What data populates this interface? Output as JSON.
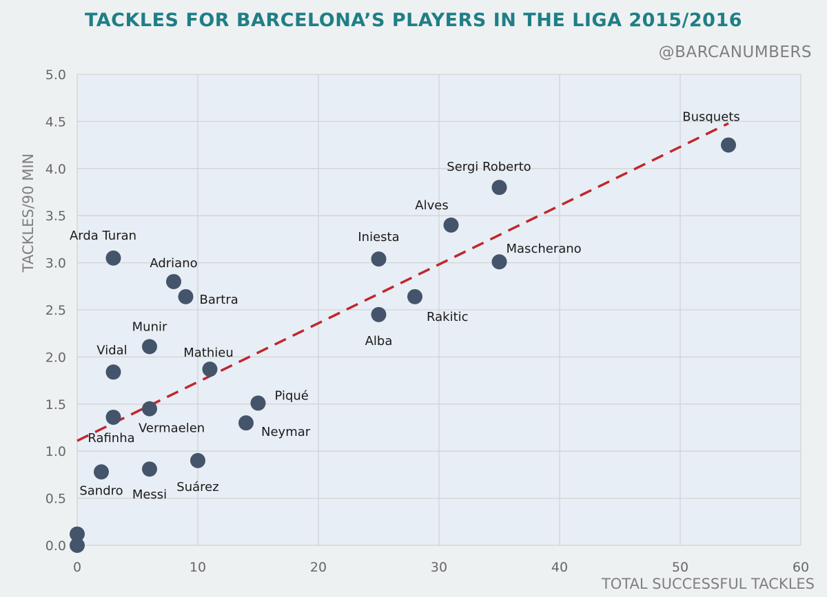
{
  "title": "TACKLES FOR BARCELONA’S PLAYERS IN THE LIGA 2015/2016",
  "handle": "@BARCANUMBERS",
  "colors": {
    "title": "#1f7f86",
    "plot_background": "#e8eef5",
    "marker": "#44546a",
    "trendline": "#c0272d",
    "grid": "#d3d3d3"
  },
  "chart_data": {
    "type": "scatter",
    "xlabel": "TOTAL SUCCESSFUL TACKLES",
    "ylabel": "TACKLES/90 MIN",
    "xlim": [
      0,
      60
    ],
    "ylim": [
      0,
      5
    ],
    "xticks": [
      "0",
      "10",
      "20",
      "30",
      "40",
      "50",
      "60"
    ],
    "yticks": [
      "0.0",
      "0.5",
      "1.0",
      "1.5",
      "2.0",
      "2.5",
      "3.0",
      "3.5",
      "4.0",
      "4.5",
      "5.0"
    ],
    "grid": true,
    "points": [
      {
        "label": "Busquets",
        "x": 54,
        "y": 4.25
      },
      {
        "label": "Sergi Roberto",
        "x": 35,
        "y": 3.8
      },
      {
        "label": "Alves",
        "x": 31,
        "y": 3.4
      },
      {
        "label": "Mascherano",
        "x": 35,
        "y": 3.01
      },
      {
        "label": "Iniesta",
        "x": 25,
        "y": 3.04
      },
      {
        "label": "Rakitic",
        "x": 28,
        "y": 2.64
      },
      {
        "label": "Alba",
        "x": 25,
        "y": 2.45
      },
      {
        "label": "Arda Turan",
        "x": 3,
        "y": 3.05
      },
      {
        "label": "Adriano",
        "x": 8,
        "y": 2.8
      },
      {
        "label": "Bartra",
        "x": 9,
        "y": 2.64
      },
      {
        "label": "Munir",
        "x": 6,
        "y": 2.11
      },
      {
        "label": "Vidal",
        "x": 3,
        "y": 1.84
      },
      {
        "label": "Mathieu",
        "x": 11,
        "y": 1.87
      },
      {
        "label": "Piqué",
        "x": 15,
        "y": 1.51
      },
      {
        "label": "Neymar",
        "x": 14,
        "y": 1.3
      },
      {
        "label": "Vermaelen",
        "x": 6,
        "y": 1.45
      },
      {
        "label": "Rafinha",
        "x": 3,
        "y": 1.36
      },
      {
        "label": "Suárez",
        "x": 10,
        "y": 0.9
      },
      {
        "label": "Messi",
        "x": 6,
        "y": 0.81
      },
      {
        "label": "Sandro",
        "x": 2,
        "y": 0.78
      },
      {
        "label": "",
        "x": 0,
        "y": 0.12
      },
      {
        "label": "",
        "x": 0,
        "y": 0.0
      }
    ],
    "trendline": {
      "style": "dashed",
      "x": [
        0,
        54
      ],
      "y": [
        1.11,
        4.48
      ]
    }
  }
}
